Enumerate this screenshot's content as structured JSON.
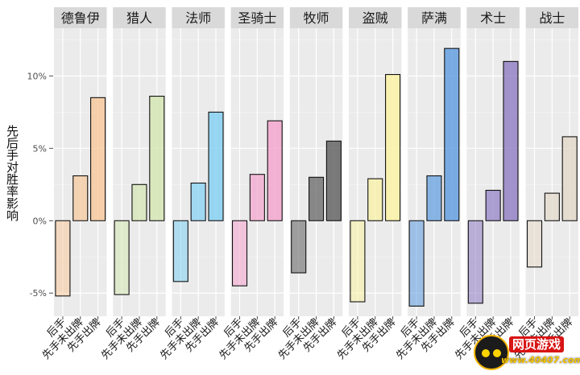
{
  "chart_data": {
    "type": "bar",
    "ylabel": "先后手对胜率影响",
    "xlabel": "",
    "title": "",
    "ylim": [
      -6.6,
      13.3
    ],
    "yticks": [
      -5,
      0,
      5,
      10
    ],
    "ytick_labels": [
      "-5%",
      "0%",
      "5%",
      "10%"
    ],
    "grid": true,
    "legend": "none",
    "categories": [
      "后手",
      "先手未出牌",
      "先手出牌"
    ],
    "panels": [
      {
        "name": "德鲁伊",
        "values": [
          -5.2,
          3.1,
          8.5
        ],
        "color": "#f7c89a"
      },
      {
        "name": "猎人",
        "values": [
          -5.1,
          2.5,
          8.6
        ],
        "color": "#d4e6b0"
      },
      {
        "name": "法师",
        "values": [
          -4.2,
          2.6,
          7.5
        ],
        "color": "#7fd0f2"
      },
      {
        "name": "圣骑士",
        "values": [
          -4.5,
          3.2,
          6.9
        ],
        "color": "#f4a3cc"
      },
      {
        "name": "牧师",
        "values": [
          -3.6,
          3.0,
          5.5
        ],
        "color": "#5c5c5c"
      },
      {
        "name": "盗贼",
        "values": [
          -5.6,
          2.9,
          10.1
        ],
        "color": "#fbf2a0"
      },
      {
        "name": "萨满",
        "values": [
          -5.9,
          3.1,
          11.9
        ],
        "color": "#5d9be0"
      },
      {
        "name": "术士",
        "values": [
          -5.7,
          2.1,
          11.0
        ],
        "color": "#8e7cc3"
      },
      {
        "name": "战士",
        "values": [
          -3.2,
          1.9,
          5.8
        ],
        "color": "#e3d8c9"
      }
    ]
  },
  "watermark": {
    "brand": "网页游戏",
    "url": "www.40407.com"
  }
}
